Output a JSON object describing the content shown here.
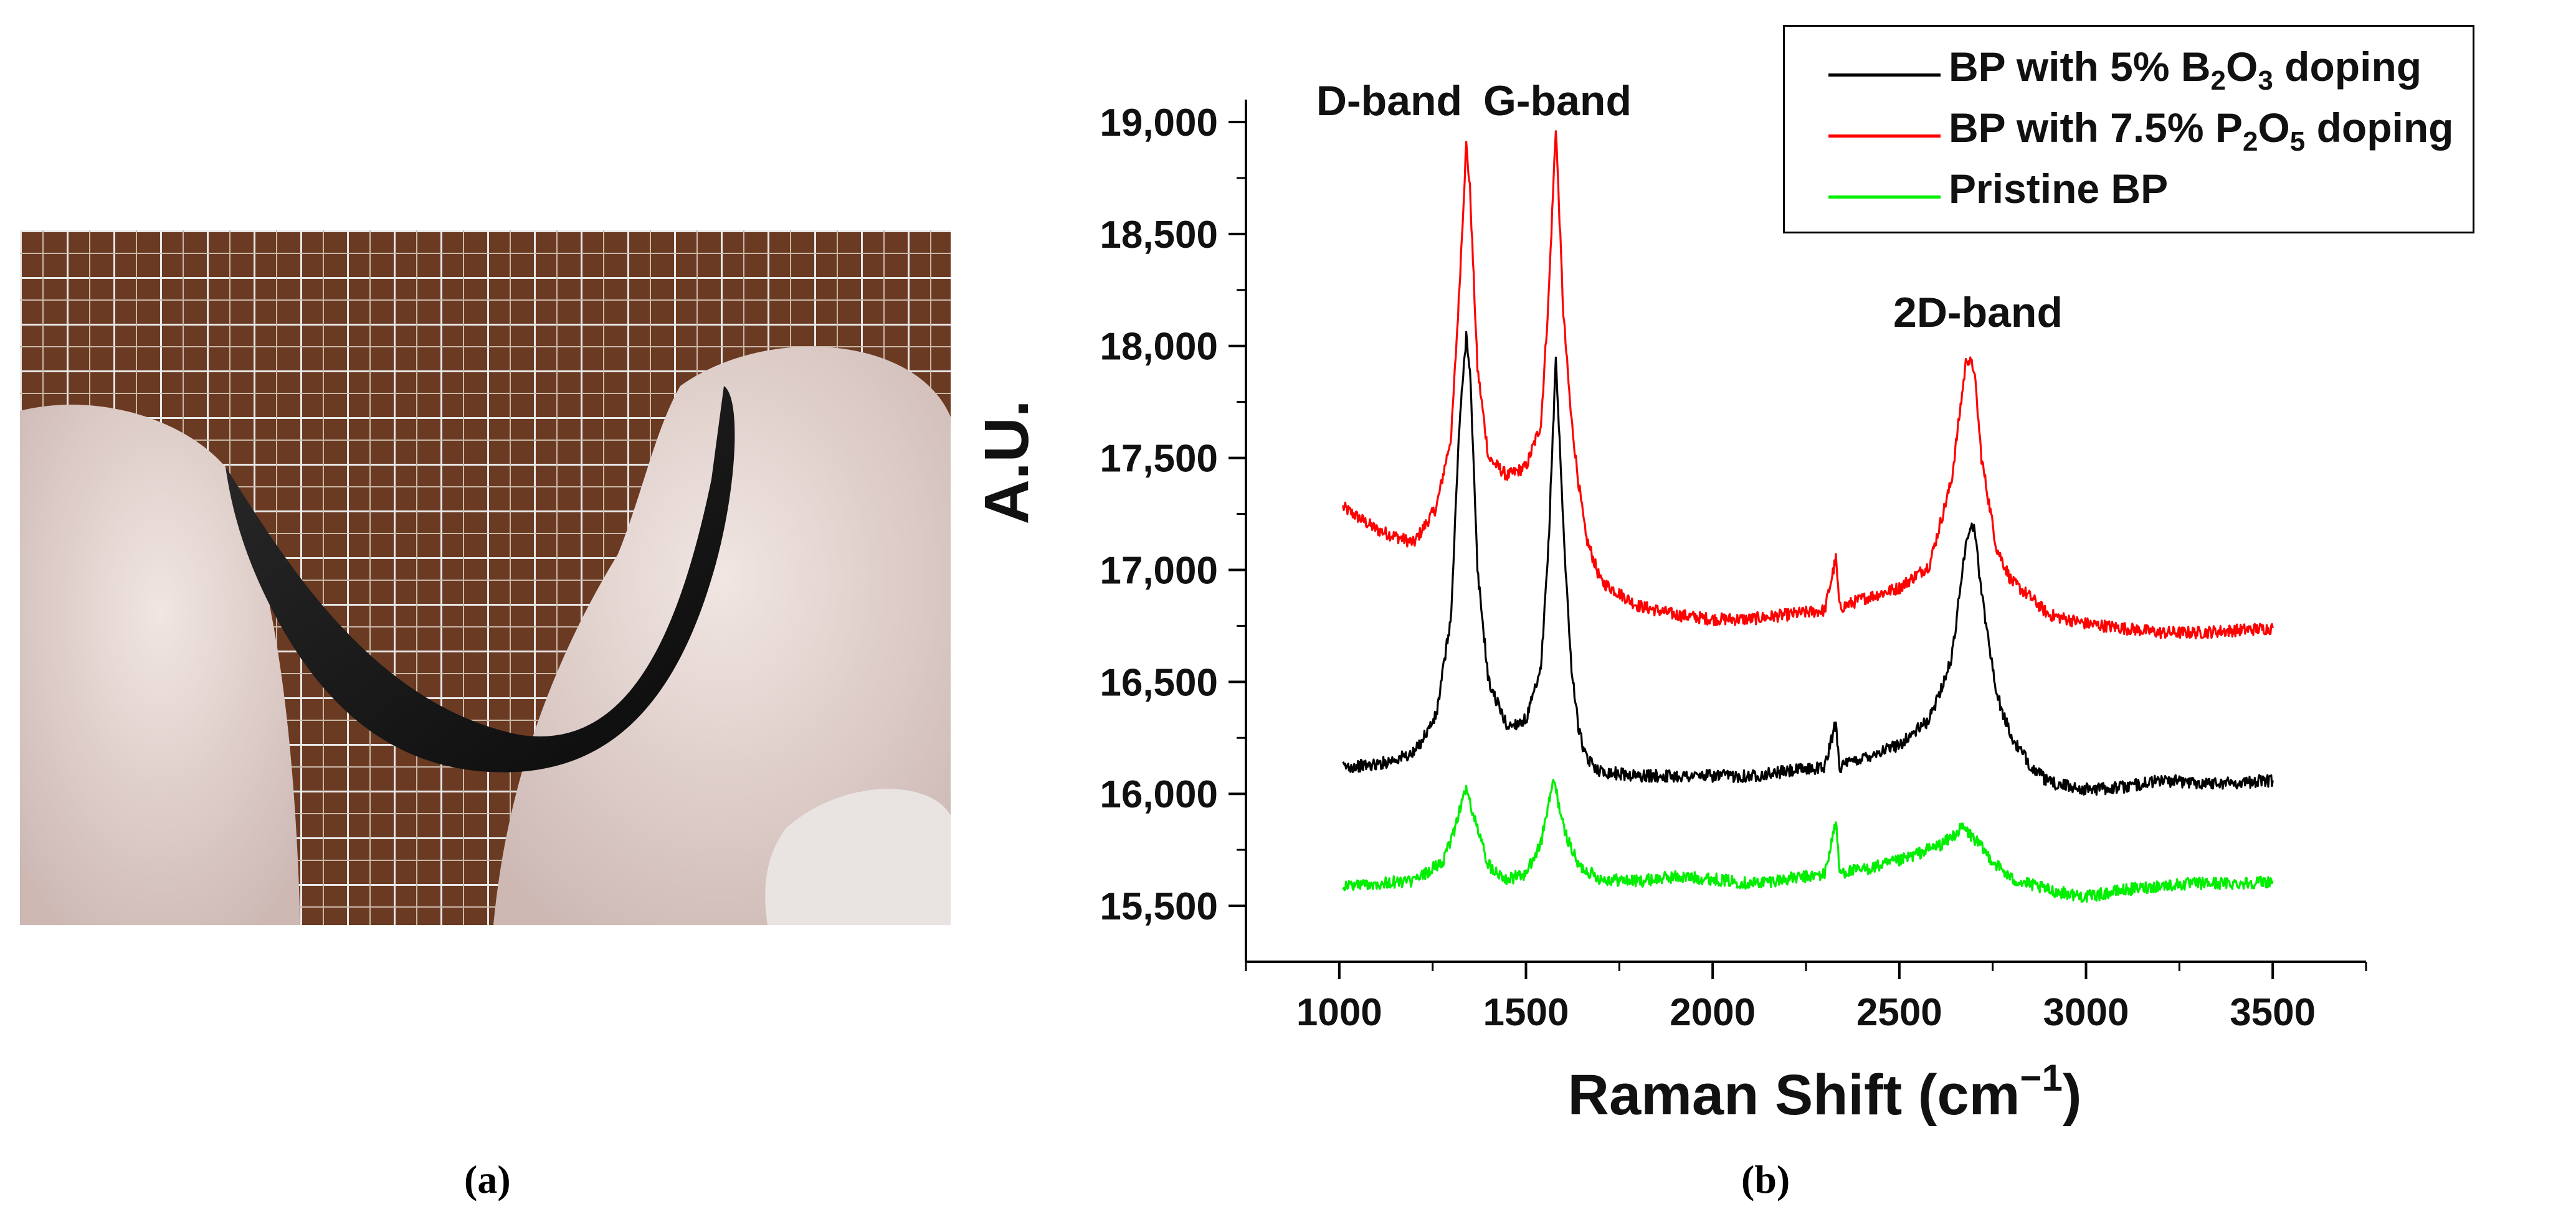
{
  "panels": {
    "a_label": "(a)",
    "b_label": "(b)"
  },
  "photo": {
    "description_icon": "black-flexible-sheet-photo",
    "colors": {
      "sheet": "#111111",
      "skin": "#e8dcd8",
      "board": "#6b3a22",
      "grid": "#e8e8e8"
    }
  },
  "legend": {
    "items": [
      {
        "prefix": "BP with 5% B",
        "sub1": "2",
        "mid": "O",
        "sub2": "3",
        "suffix": " doping",
        "color": "#000000"
      },
      {
        "prefix": "BP with 7.5% P",
        "sub1": "2",
        "mid": "O",
        "sub2": "5",
        "suffix": " doping",
        "color": "#ff0000"
      },
      {
        "prefix": "Pristine BP",
        "sub1": "",
        "mid": "",
        "sub2": "",
        "suffix": "",
        "color": "#00ee00"
      }
    ]
  },
  "chart_data": {
    "type": "line",
    "xlabel": "Raman Shift (cm",
    "xlabel_sup": "−1",
    "xlabel_tail": ")",
    "ylabel": "A.U.",
    "xlim": [
      750,
      3750
    ],
    "ylim": [
      15250,
      19100
    ],
    "xticks": [
      1000,
      1500,
      2000,
      2500,
      3000,
      3500
    ],
    "yticks": [
      15500,
      16000,
      16500,
      17000,
      17500,
      18000,
      18500,
      19000
    ],
    "ytick_labels": [
      "15,500",
      "16,000",
      "16,500",
      "17,000",
      "17,500",
      "18,000",
      "18,500",
      "19,000"
    ],
    "grid": false,
    "legend_position": "top-right",
    "annotations": [
      {
        "text": "D-band",
        "x": 1340,
        "y": 19120
      },
      {
        "text": "G-band",
        "x": 1580,
        "y": 19120
      },
      {
        "text": "2D-band",
        "x": 2690,
        "y": 18220
      }
    ],
    "series": [
      {
        "name": "BP with 7.5% P2O5 doping",
        "color": "#ff0000",
        "x": [
          1010,
          1100,
          1200,
          1260,
          1300,
          1320,
          1340,
          1350,
          1370,
          1400,
          1450,
          1500,
          1540,
          1560,
          1580,
          1600,
          1620,
          1640,
          1660,
          1700,
          1800,
          1900,
          2000,
          2100,
          2200,
          2300,
          2330,
          2340,
          2400,
          2500,
          2580,
          2640,
          2680,
          2700,
          2720,
          2760,
          2800,
          2850,
          2900,
          3000,
          3100,
          3200,
          3300,
          3400,
          3500
        ],
        "y": [
          17280,
          17180,
          17120,
          17280,
          17600,
          18200,
          18900,
          18700,
          17900,
          17500,
          17420,
          17460,
          17650,
          18200,
          18980,
          18150,
          17700,
          17400,
          17150,
          16950,
          16840,
          16800,
          16780,
          16780,
          16800,
          16820,
          17050,
          16830,
          16870,
          16920,
          17020,
          17400,
          17950,
          17900,
          17500,
          17100,
          16950,
          16880,
          16800,
          16760,
          16740,
          16720,
          16720,
          16730,
          16740
        ]
      },
      {
        "name": "BP with 5% B2O3 doping",
        "color": "#000000",
        "x": [
          1010,
          1100,
          1200,
          1260,
          1300,
          1320,
          1340,
          1350,
          1370,
          1400,
          1450,
          1500,
          1540,
          1560,
          1580,
          1600,
          1620,
          1640,
          1660,
          1700,
          1800,
          1900,
          2000,
          2100,
          2200,
          2300,
          2330,
          2340,
          2400,
          2500,
          2580,
          2640,
          2680,
          2700,
          2720,
          2760,
          2800,
          2850,
          2900,
          3000,
          3100,
          3200,
          3300,
          3400,
          3500
        ],
        "y": [
          16120,
          16130,
          16180,
          16350,
          16800,
          17600,
          18050,
          17900,
          17000,
          16500,
          16300,
          16330,
          16550,
          17100,
          17950,
          17200,
          16600,
          16300,
          16160,
          16100,
          16080,
          16080,
          16080,
          16080,
          16100,
          16120,
          16320,
          16120,
          16160,
          16220,
          16330,
          16600,
          17150,
          17200,
          16900,
          16450,
          16250,
          16130,
          16050,
          16020,
          16030,
          16060,
          16050,
          16050,
          16060
        ]
      },
      {
        "name": "Pristine BP",
        "color": "#00ee00",
        "x": [
          1010,
          1100,
          1200,
          1280,
          1310,
          1330,
          1340,
          1360,
          1400,
          1450,
          1500,
          1540,
          1560,
          1575,
          1600,
          1640,
          1700,
          1800,
          1900,
          2000,
          2100,
          2200,
          2300,
          2330,
          2340,
          2400,
          2500,
          2560,
          2620,
          2670,
          2700,
          2750,
          2800,
          2900,
          3000,
          3100,
          3200,
          3300,
          3400,
          3500
        ],
        "y": [
          15590,
          15600,
          15610,
          15700,
          15850,
          15980,
          16020,
          15900,
          15680,
          15620,
          15640,
          15780,
          15950,
          16060,
          15850,
          15680,
          15620,
          15610,
          15630,
          15620,
          15600,
          15620,
          15640,
          15880,
          15650,
          15660,
          15700,
          15740,
          15780,
          15850,
          15800,
          15700,
          15620,
          15570,
          15540,
          15570,
          15590,
          15600,
          15600,
          15610
        ]
      }
    ]
  }
}
